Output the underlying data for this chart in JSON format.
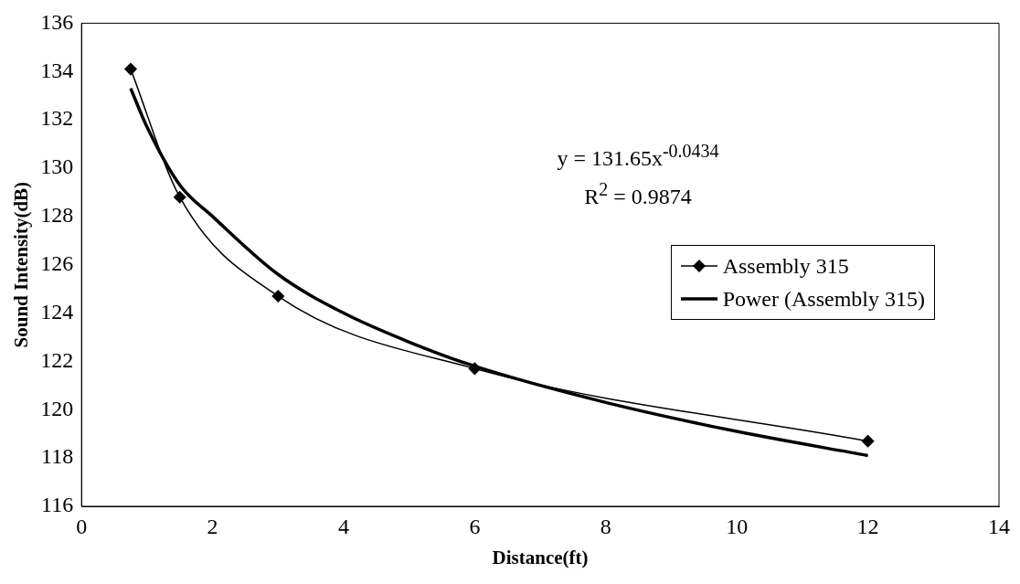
{
  "chart_data": {
    "type": "line",
    "xlabel": "Distance(ft)",
    "ylabel": "Sound Intensity(dB)",
    "xlim": [
      0,
      14
    ],
    "xticks": [
      0,
      2,
      4,
      6,
      8,
      10,
      12,
      14
    ],
    "ylim": [
      116,
      136
    ],
    "yticks": [
      116,
      118,
      120,
      122,
      124,
      126,
      128,
      130,
      132,
      134,
      136
    ],
    "grid": false,
    "legend": "right",
    "annotations": [
      "y = 131.65x$^{-0.0434}$",
      "R$^{2}$ = 0.9874"
    ],
    "series": [
      {
        "name": "Assembly 315",
        "color": "#000000",
        "marker": "diamond",
        "line_style": "solid",
        "x": [
          0.75,
          1.5,
          3,
          6,
          12
        ],
        "values": [
          134.1,
          128.8,
          124.7,
          121.7,
          118.7
        ]
      },
      {
        "name": "Power (Assembly 315)",
        "color": "#000000",
        "marker": "none",
        "line_style": "solid",
        "x": [
          0.75,
          1,
          1.5,
          2,
          3,
          4,
          5,
          6,
          8,
          10,
          12
        ],
        "values": [
          133.3,
          131.7,
          129.3,
          128.0,
          125.6,
          124.0,
          122.8,
          121.8,
          120.3,
          119.1,
          118.1
        ]
      }
    ]
  }
}
